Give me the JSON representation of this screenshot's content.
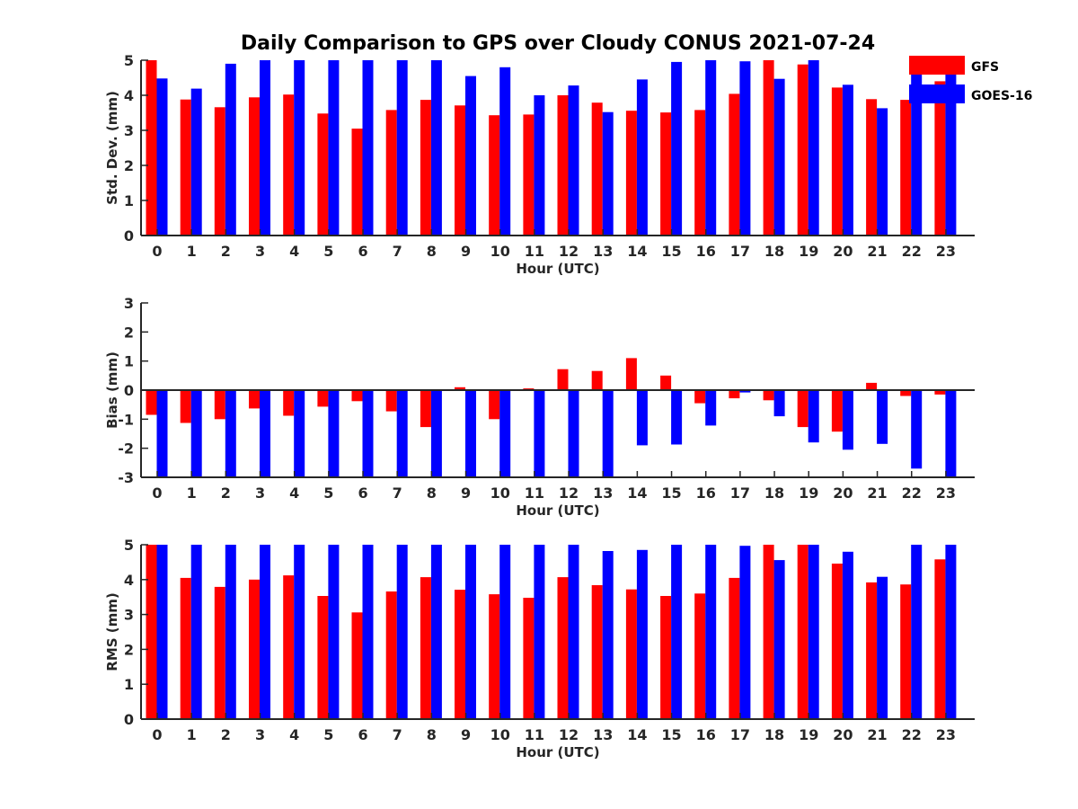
{
  "title": "Daily Comparison to GPS over Cloudy CONUS 2021-07-24",
  "legend": {
    "placement": "top-right",
    "entries": [
      {
        "label": "GFS",
        "color": "#ff0000"
      },
      {
        "label": "GOES-16",
        "color": "#0000ff"
      }
    ]
  },
  "chart_data": [
    {
      "type": "bar",
      "xlabel": "Hour (UTC)",
      "ylabel": "Std. Dev. (mm)",
      "ylim": [
        0,
        5
      ],
      "yticks": [
        "0",
        "1",
        "2",
        "3",
        "4",
        "5"
      ],
      "categories": [
        "0",
        "1",
        "2",
        "3",
        "4",
        "5",
        "6",
        "7",
        "8",
        "9",
        "10",
        "11",
        "12",
        "13",
        "14",
        "15",
        "16",
        "17",
        "18",
        "19",
        "20",
        "21",
        "22",
        "23"
      ],
      "series": [
        {
          "name": "GFS",
          "color": "#ff0000",
          "values": [
            5,
            3.88,
            3.66,
            3.94,
            4.02,
            3.48,
            3.05,
            3.58,
            3.87,
            3.71,
            3.43,
            3.45,
            4.0,
            3.79,
            3.56,
            3.51,
            3.58,
            4.04,
            5,
            4.88,
            4.22,
            3.89,
            3.87,
            4.4
          ]
        },
        {
          "name": "GOES-16",
          "color": "#0000ff",
          "values": [
            4.48,
            4.19,
            4.9,
            5,
            5,
            5,
            5,
            5,
            5,
            4.55,
            4.8,
            4.0,
            4.28,
            3.52,
            4.45,
            4.95,
            5,
            4.97,
            4.47,
            5,
            4.3,
            3.63,
            4.83,
            4.75
          ]
        }
      ]
    },
    {
      "type": "bar",
      "xlabel": "Hour (UTC)",
      "ylabel": "Bias (mm)",
      "ylim": [
        -3,
        3
      ],
      "yticks": [
        "-3",
        "-2",
        "-1",
        "0",
        "1",
        "2",
        "3"
      ],
      "categories": [
        "0",
        "1",
        "2",
        "3",
        "4",
        "5",
        "6",
        "7",
        "8",
        "9",
        "10",
        "11",
        "12",
        "13",
        "14",
        "15",
        "16",
        "17",
        "18",
        "19",
        "20",
        "21",
        "22",
        "23"
      ],
      "series": [
        {
          "name": "GFS",
          "color": "#ff0000",
          "values": [
            -0.85,
            -1.13,
            -1.0,
            -0.63,
            -0.88,
            -0.57,
            -0.38,
            -0.73,
            -1.27,
            0.1,
            -1.0,
            0.06,
            0.72,
            0.66,
            1.1,
            0.5,
            -0.45,
            -0.28,
            -0.35,
            -1.27,
            -1.43,
            0.25,
            -0.2,
            -0.15
          ]
        },
        {
          "name": "GOES-16",
          "color": "#0000ff",
          "values": [
            -3,
            -3,
            -3,
            -3,
            -3,
            -3,
            -3,
            -3,
            -3,
            -3,
            -3,
            -3,
            -3,
            -3,
            -1.9,
            -1.87,
            -1.22,
            -0.08,
            -0.9,
            -1.8,
            -2.05,
            -1.85,
            -2.7,
            -3
          ]
        }
      ]
    },
    {
      "type": "bar",
      "xlabel": "Hour (UTC)",
      "ylabel": "RMS (mm)",
      "ylim": [
        0,
        5
      ],
      "yticks": [
        "0",
        "1",
        "2",
        "3",
        "4",
        "5"
      ],
      "categories": [
        "0",
        "1",
        "2",
        "3",
        "4",
        "5",
        "6",
        "7",
        "8",
        "9",
        "10",
        "11",
        "12",
        "13",
        "14",
        "15",
        "16",
        "17",
        "18",
        "19",
        "20",
        "21",
        "22",
        "23"
      ],
      "series": [
        {
          "name": "GFS",
          "color": "#ff0000",
          "values": [
            5,
            4.05,
            3.79,
            4.0,
            4.12,
            3.53,
            3.06,
            3.66,
            4.07,
            3.71,
            3.58,
            3.48,
            4.07,
            3.84,
            3.72,
            3.53,
            3.6,
            4.05,
            5,
            5,
            4.46,
            3.92,
            3.86,
            4.58
          ]
        },
        {
          "name": "GOES-16",
          "color": "#0000ff",
          "values": [
            5,
            5,
            5,
            5,
            5,
            5,
            5,
            5,
            5,
            5,
            5,
            5,
            5,
            4.82,
            4.85,
            5,
            5,
            4.97,
            4.56,
            5,
            4.8,
            4.08,
            5,
            5
          ]
        }
      ]
    }
  ]
}
